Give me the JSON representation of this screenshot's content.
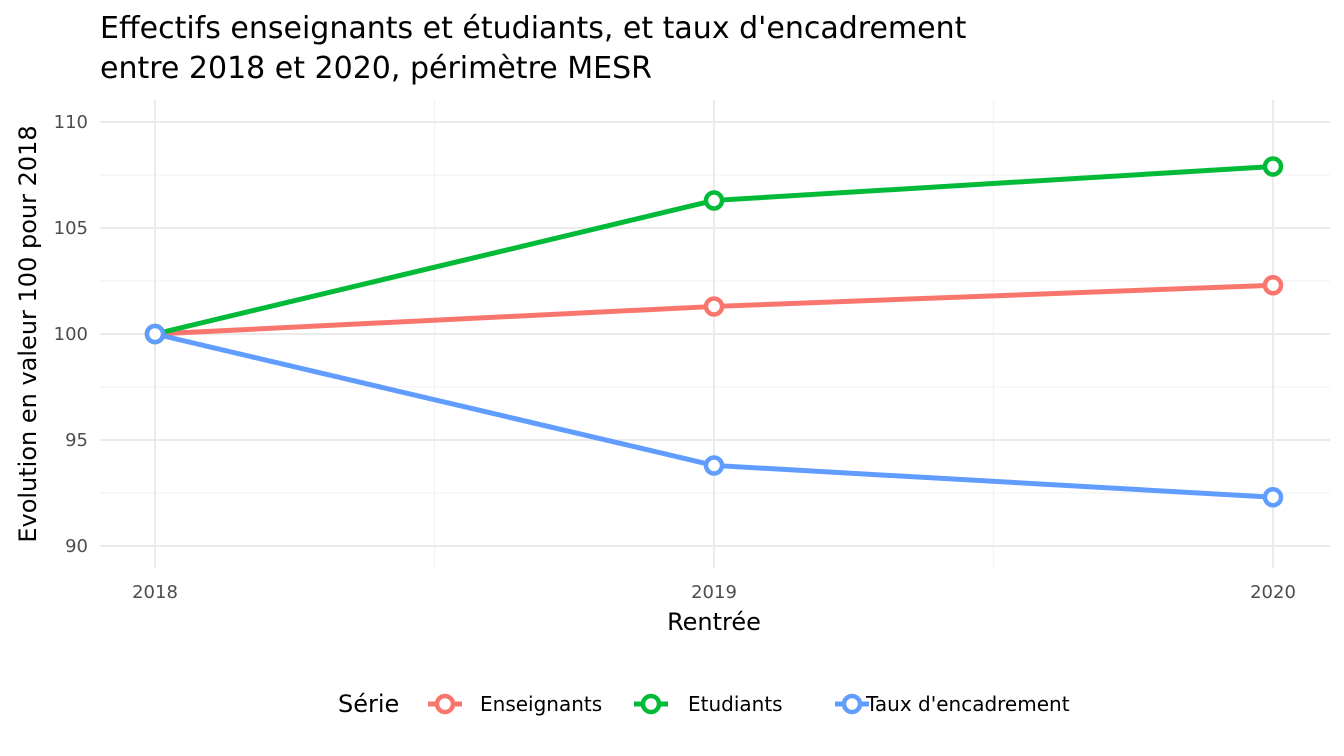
{
  "chart_data": {
    "type": "line",
    "title_lines": [
      "Effectifs enseignants et étudiants, et taux d'encadrement",
      "entre 2018 et 2020, périmètre MESR"
    ],
    "xlabel": "Rentrée",
    "ylabel": "Evolution en valeur 100 pour 2018",
    "x": [
      "2018",
      "2019",
      "2020"
    ],
    "ylim": [
      89.5,
      111
    ],
    "yticks": [
      "90",
      "95",
      "100",
      "105",
      "110"
    ],
    "grid": true,
    "legend": {
      "title": "Série",
      "position": "bottom"
    },
    "series": [
      {
        "name": "Enseignants",
        "color": "#F8766D",
        "values": [
          100,
          101.3,
          102.3
        ]
      },
      {
        "name": "Etudiants",
        "color": "#00BA38",
        "values": [
          100,
          106.3,
          107.9
        ]
      },
      {
        "name": "Taux d'encadrement",
        "color": "#619CFF",
        "values": [
          100,
          93.8,
          92.3
        ]
      }
    ]
  }
}
